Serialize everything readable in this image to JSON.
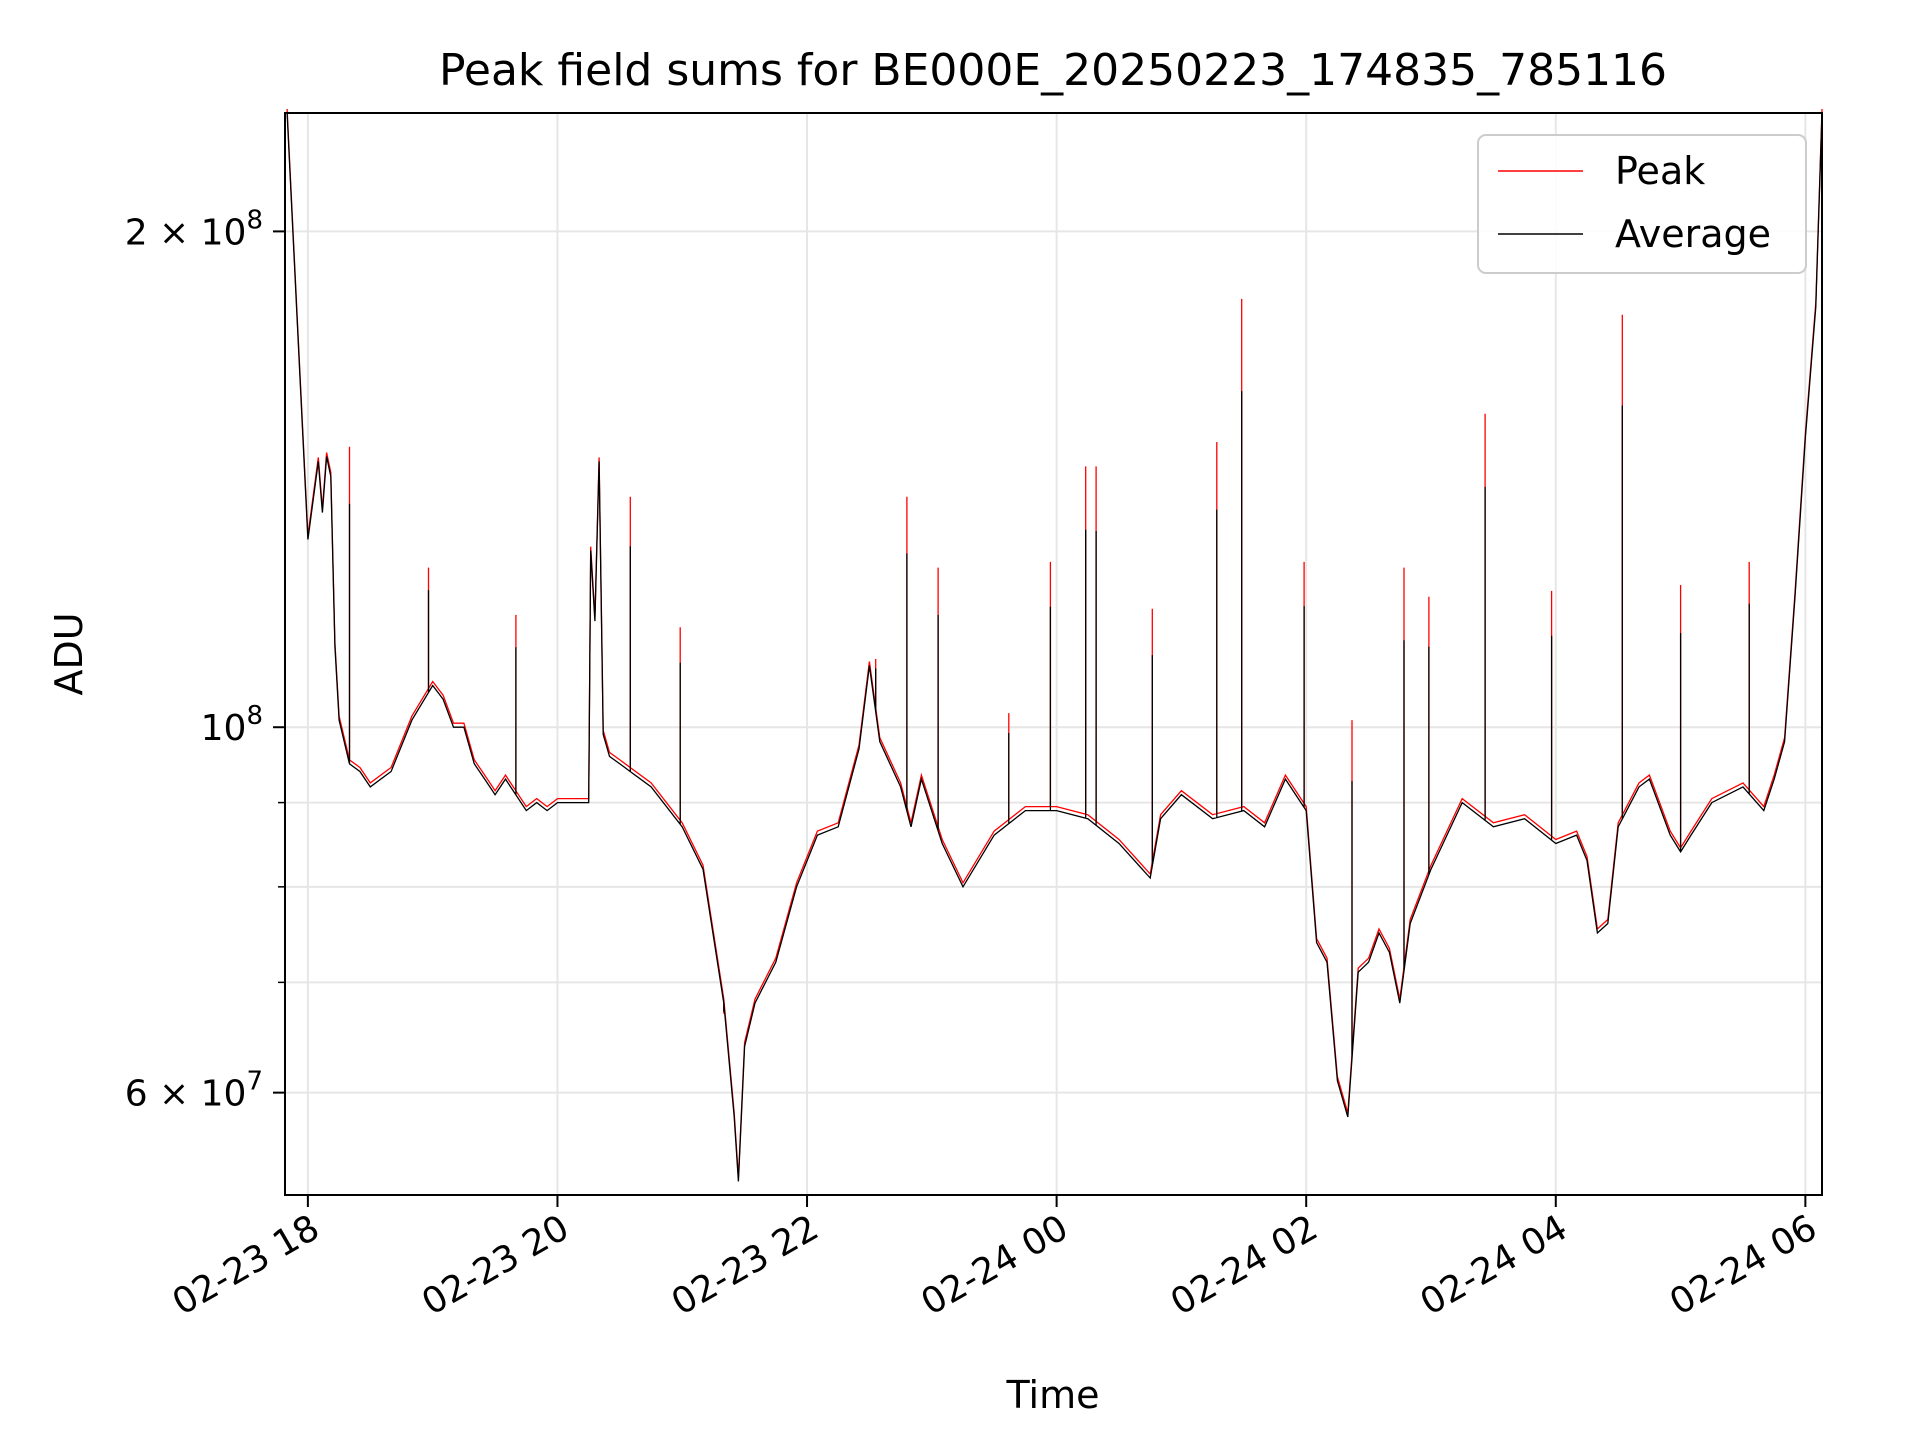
{
  "chart_data": {
    "type": "line",
    "title": "Peak field sums for BE000E_20250223_174835_785116",
    "xlabel": "Time",
    "ylabel": "ADU",
    "yscale": "log",
    "ylim": [
      52000000,
      236000000
    ],
    "xlim": [
      "2025-02-23 17:49",
      "2025-02-24 06:08"
    ],
    "grid": true,
    "legend": {
      "placement": "top-right",
      "entries": [
        "Peak",
        "Average"
      ]
    },
    "x_ticks": [
      {
        "value": "2025-02-23 18:00",
        "label": "02-23 18"
      },
      {
        "value": "2025-02-23 20:00",
        "label": "02-23 20"
      },
      {
        "value": "2025-02-23 22:00",
        "label": "02-23 22"
      },
      {
        "value": "2025-02-24 00:00",
        "label": "02-24 00"
      },
      {
        "value": "2025-02-24 02:00",
        "label": "02-24 02"
      },
      {
        "value": "2025-02-24 04:00",
        "label": "02-24 04"
      },
      {
        "value": "2025-02-24 06:00",
        "label": "02-24 06"
      }
    ],
    "y_ticks_major": [
      {
        "value": 100000000,
        "mantissa": "",
        "exponent": "8"
      },
      {
        "value": 200000000,
        "mantissa": "2",
        "exponent": "8"
      },
      {
        "value": 60000000,
        "mantissa": "6",
        "exponent": "7"
      }
    ],
    "y_ticks_minor": [
      70000000,
      80000000,
      90000000
    ],
    "colors": {
      "peak": "#ff0000",
      "average": "#000000",
      "grid": "#e6e6e6"
    },
    "series": [
      {
        "name": "Average",
        "x": [
          "2025-02-23 17:50",
          "2025-02-23 17:55",
          "2025-02-23 18:00",
          "2025-02-23 18:05",
          "2025-02-23 18:07",
          "2025-02-23 18:09",
          "2025-02-23 18:11",
          "2025-02-23 18:13",
          "2025-02-23 18:15",
          "2025-02-23 18:20",
          "2025-02-23 18:25",
          "2025-02-23 18:30",
          "2025-02-23 18:40",
          "2025-02-23 18:50",
          "2025-02-23 19:00",
          "2025-02-23 19:05",
          "2025-02-23 19:10",
          "2025-02-23 19:15",
          "2025-02-23 19:20",
          "2025-02-23 19:25",
          "2025-02-23 19:30",
          "2025-02-23 19:35",
          "2025-02-23 19:45",
          "2025-02-23 19:50",
          "2025-02-23 19:55",
          "2025-02-23 20:00",
          "2025-02-23 20:15",
          "2025-02-23 20:16",
          "2025-02-23 20:18",
          "2025-02-23 20:20",
          "2025-02-23 20:22",
          "2025-02-23 20:25",
          "2025-02-23 20:30",
          "2025-02-23 20:45",
          "2025-02-23 21:00",
          "2025-02-23 21:10",
          "2025-02-23 21:20",
          "2025-02-23 21:25",
          "2025-02-23 21:27",
          "2025-02-23 21:30",
          "2025-02-23 21:35",
          "2025-02-23 21:45",
          "2025-02-23 21:55",
          "2025-02-23 22:05",
          "2025-02-23 22:15",
          "2025-02-23 22:25",
          "2025-02-23 22:30",
          "2025-02-23 22:35",
          "2025-02-23 22:45",
          "2025-02-23 22:50",
          "2025-02-23 22:55",
          "2025-02-23 23:05",
          "2025-02-23 23:15",
          "2025-02-23 23:30",
          "2025-02-23 23:45",
          "2025-02-24 00:00",
          "2025-02-24 00:15",
          "2025-02-24 00:30",
          "2025-02-24 00:45",
          "2025-02-24 00:50",
          "2025-02-24 01:00",
          "2025-02-24 01:15",
          "2025-02-24 01:30",
          "2025-02-24 01:40",
          "2025-02-24 01:50",
          "2025-02-24 02:00",
          "2025-02-24 02:05",
          "2025-02-24 02:10",
          "2025-02-24 02:15",
          "2025-02-24 02:20",
          "2025-02-24 02:25",
          "2025-02-24 02:30",
          "2025-02-24 02:35",
          "2025-02-24 02:40",
          "2025-02-24 02:45",
          "2025-02-24 02:50",
          "2025-02-24 03:00",
          "2025-02-24 03:15",
          "2025-02-24 03:30",
          "2025-02-24 03:45",
          "2025-02-24 04:00",
          "2025-02-24 04:10",
          "2025-02-24 04:15",
          "2025-02-24 04:20",
          "2025-02-24 04:25",
          "2025-02-24 04:30",
          "2025-02-24 04:40",
          "2025-02-24 04:45",
          "2025-02-24 04:55",
          "2025-02-24 05:00",
          "2025-02-24 05:05",
          "2025-02-24 05:15",
          "2025-02-24 05:30",
          "2025-02-24 05:40",
          "2025-02-24 05:45",
          "2025-02-24 05:50",
          "2025-02-24 05:55",
          "2025-02-24 06:00",
          "2025-02-24 06:05",
          "2025-02-24 06:08"
        ],
        "values": [
          236000000,
          175000000,
          130000000,
          145000000,
          135000000,
          146000000,
          142000000,
          112000000,
          101000000,
          95000000,
          94000000,
          92000000,
          94000000,
          101000000,
          106000000,
          104000000,
          100000000,
          100000000,
          95000000,
          93000000,
          91000000,
          93000000,
          89000000,
          90000000,
          89000000,
          90000000,
          90000000,
          128000000,
          116000000,
          145000000,
          99000000,
          96000000,
          95000000,
          92000000,
          87000000,
          82000000,
          68000000,
          58000000,
          53000000,
          64000000,
          68000000,
          72000000,
          80000000,
          86000000,
          87000000,
          97000000,
          109000000,
          98000000,
          92000000,
          87000000,
          93000000,
          85000000,
          80000000,
          86000000,
          89000000,
          89000000,
          88000000,
          85000000,
          81000000,
          88000000,
          91000000,
          88000000,
          89000000,
          87000000,
          93000000,
          89000000,
          74000000,
          72000000,
          61000000,
          58000000,
          71000000,
          72000000,
          75000000,
          73000000,
          68000000,
          76000000,
          82000000,
          90000000,
          87000000,
          88000000,
          85000000,
          86000000,
          83000000,
          75000000,
          76000000,
          87000000,
          92000000,
          93000000,
          86000000,
          84000000,
          86000000,
          90000000,
          92000000,
          89000000,
          93000000,
          98000000,
          120000000,
          150000000,
          180000000,
          236000000
        ]
      },
      {
        "name": "Peak",
        "spikes": [
          {
            "x": "2025-02-23 18:20",
            "y": 148000000
          },
          {
            "x": "2025-02-23 18:58",
            "y": 125000000
          },
          {
            "x": "2025-02-23 19:40",
            "y": 117000000
          },
          {
            "x": "2025-02-23 20:35",
            "y": 138000000
          },
          {
            "x": "2025-02-23 20:59",
            "y": 115000000
          },
          {
            "x": "2025-02-23 21:20",
            "y": 67000000
          },
          {
            "x": "2025-02-23 22:33",
            "y": 110000000
          },
          {
            "x": "2025-02-23 22:48",
            "y": 138000000
          },
          {
            "x": "2025-02-23 23:03",
            "y": 125000000
          },
          {
            "x": "2025-02-23 23:37",
            "y": 102000000
          },
          {
            "x": "2025-02-23 23:57",
            "y": 126000000
          },
          {
            "x": "2025-02-24 00:14",
            "y": 144000000
          },
          {
            "x": "2025-02-24 00:19",
            "y": 144000000
          },
          {
            "x": "2025-02-24 00:46",
            "y": 118000000
          },
          {
            "x": "2025-02-24 01:17",
            "y": 149000000
          },
          {
            "x": "2025-02-24 01:29",
            "y": 182000000
          },
          {
            "x": "2025-02-24 01:59",
            "y": 126000000
          },
          {
            "x": "2025-02-24 02:22",
            "y": 101000000
          },
          {
            "x": "2025-02-24 02:47",
            "y": 125000000
          },
          {
            "x": "2025-02-24 02:59",
            "y": 120000000
          },
          {
            "x": "2025-02-24 03:26",
            "y": 155000000
          },
          {
            "x": "2025-02-24 03:58",
            "y": 121000000
          },
          {
            "x": "2025-02-24 04:32",
            "y": 178000000
          },
          {
            "x": "2025-02-24 05:00",
            "y": 122000000
          },
          {
            "x": "2025-02-24 05:33",
            "y": 126000000
          }
        ]
      }
    ]
  }
}
